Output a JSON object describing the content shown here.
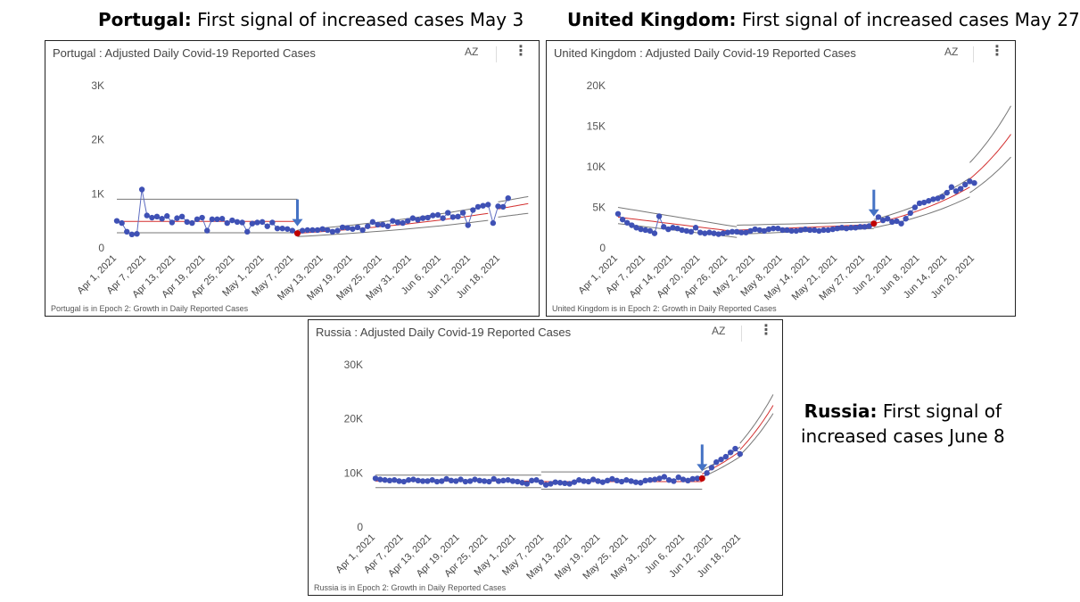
{
  "captions": [
    {
      "bold": "Portugal:",
      "rest": " First signal of increased cases May 3"
    },
    {
      "bold": "United Kingdom:",
      "rest": " First signal of increased cases May 27"
    },
    {
      "bold": "Russia:",
      "rest_line1": " First signal of",
      "line2": "increased cases June 8"
    }
  ],
  "menu": {
    "sort_icon_label": "AZ",
    "more_icon": "more-vert-icon"
  },
  "colors": {
    "points": "#3f51b5",
    "trend": "#d32f2f",
    "band": "#777777",
    "arrow": "#4472c4",
    "signal": "#c00000"
  },
  "chart_data": [
    {
      "id": "portugal",
      "type": "line",
      "title": "Portugal : Adjusted Daily Covid-19 Reported Cases",
      "footer": "Portugal is in Epoch 2: Growth in Daily Reported Cases",
      "x_tick_labels": [
        "Apr 1, 2021",
        "Apr 7, 2021",
        "Apr 13, 2021",
        "Apr 19, 2021",
        "Apr 25, 2021",
        "May 1, 2021",
        "May 7, 2021",
        "May 13, 2021",
        "May 19, 2021",
        "May 25, 2021",
        "May 31, 2021",
        "Jun 6, 2021",
        "Jun 12, 2021",
        "Jun 18, 2021"
      ],
      "y_ticks": [
        {
          "v": 0,
          "label": "0"
        },
        {
          "v": 1000,
          "label": "1K"
        },
        {
          "v": 2000,
          "label": "2K"
        },
        {
          "v": 3000,
          "label": "3K"
        }
      ],
      "ylim": [
        0,
        3000
      ],
      "xlim": [
        0,
        80
      ],
      "signal_day": 36,
      "arrow_day": 36,
      "values": [
        500,
        460,
        300,
        250,
        260,
        1080,
        600,
        560,
        580,
        540,
        590,
        470,
        550,
        580,
        480,
        460,
        530,
        560,
        320,
        530,
        530,
        540,
        460,
        510,
        480,
        470,
        300,
        450,
        470,
        480,
        400,
        470,
        360,
        360,
        350,
        320,
        270,
        320,
        330,
        330,
        330,
        350,
        330,
        300,
        320,
        380,
        370,
        350,
        380,
        330,
        400,
        480,
        430,
        430,
        400,
        500,
        470,
        460,
        500,
        550,
        520,
        550,
        560,
        600,
        610,
        550,
        650,
        570,
        580,
        650,
        420,
        700,
        760,
        780,
        800,
        460,
        770,
        760,
        920
      ],
      "bands": [
        {
          "from": 0,
          "to": 36,
          "upper": [
            900,
            900
          ],
          "trend": [
            490,
            490
          ],
          "lower": [
            280,
            280
          ]
        },
        {
          "from": 36,
          "to": 74,
          "upper": [
            330,
            780
          ],
          "trend": [
            270,
            640
          ],
          "lower": [
            210,
            510
          ]
        }
      ],
      "forecast": [
        {
          "from": 76,
          "to": 82,
          "upper": [
            850,
            950
          ],
          "trend": [
            720,
            820
          ],
          "lower": [
            570,
            640
          ]
        }
      ]
    },
    {
      "id": "uk",
      "type": "line",
      "title": "United Kingdom : Adjusted Daily Covid-19 Reported Cases",
      "footer": "United Kingdom is in Epoch 2: Growth in Daily Reported Cases",
      "x_tick_labels": [
        "Apr 1, 2021",
        "Apr 7, 2021",
        "Apr 14, 2021",
        "Apr 20, 2021",
        "Apr 26, 2021",
        "May 2, 2021",
        "May 8, 2021",
        "May 14, 2021",
        "May 21, 2021",
        "May 27, 2021",
        "Jun 2, 2021",
        "Jun 8, 2021",
        "Jun 14, 2021",
        "Jun 20, 2021"
      ],
      "y_ticks": [
        {
          "v": 0,
          "label": "0"
        },
        {
          "v": 5000,
          "label": "5K"
        },
        {
          "v": 10000,
          "label": "10K"
        },
        {
          "v": 15000,
          "label": "15K"
        },
        {
          "v": 20000,
          "label": "20K"
        }
      ],
      "ylim": [
        0,
        20000
      ],
      "xlim": [
        0,
        82
      ],
      "signal_day": 56,
      "arrow_day": 56,
      "values": [
        4200,
        3500,
        3100,
        2800,
        2500,
        2300,
        2200,
        2100,
        1800,
        3900,
        2600,
        2300,
        2500,
        2400,
        2200,
        2100,
        2000,
        2500,
        1900,
        1800,
        1900,
        1800,
        1700,
        1800,
        1900,
        2000,
        2000,
        1900,
        1900,
        2100,
        2300,
        2200,
        2100,
        2300,
        2400,
        2400,
        2200,
        2200,
        2100,
        2100,
        2200,
        2300,
        2200,
        2200,
        2100,
        2200,
        2200,
        2300,
        2400,
        2500,
        2400,
        2500,
        2500,
        2600,
        2600,
        2700,
        3000,
        3800,
        3400,
        3600,
        3200,
        3300,
        3000,
        3600,
        4300,
        5000,
        5500,
        5600,
        5800,
        6000,
        6100,
        6300,
        6800,
        7500,
        7000,
        7300,
        7800,
        8200,
        8000
      ],
      "bands": [
        {
          "from": 0,
          "to": 26,
          "upper": [
            5000,
            2600
          ],
          "trend": [
            3800,
            2000
          ],
          "lower": [
            3000,
            1300
          ]
        },
        {
          "from": 26,
          "to": 56,
          "upper": [
            2800,
            3200
          ],
          "trend": [
            2200,
            2900
          ],
          "lower": [
            1700,
            2400
          ]
        },
        {
          "from": 56,
          "to": 77,
          "upper": [
            3500,
            8600
          ],
          "trend": [
            3000,
            7500
          ],
          "lower": [
            2500,
            6300
          ]
        }
      ],
      "forecast": [
        {
          "from": 77,
          "to": 86,
          "upper": [
            10500,
            17500
          ],
          "trend": [
            8500,
            14000
          ],
          "lower": [
            6800,
            11200
          ]
        }
      ]
    },
    {
      "id": "russia",
      "type": "line",
      "title": "Russia : Adjusted Daily Covid-19 Reported Cases",
      "footer": "Russia is in Epoch 2: Growth in Daily Reported Cases",
      "x_tick_labels": [
        "Apr 1, 2021",
        "Apr 7, 2021",
        "Apr 13, 2021",
        "Apr 19, 2021",
        "Apr 25, 2021",
        "May 1, 2021",
        "May 7, 2021",
        "May 13, 2021",
        "May 19, 2021",
        "May 25, 2021",
        "May 31, 2021",
        "Jun 6, 2021",
        "Jun 12, 2021",
        "Jun 18, 2021"
      ],
      "y_ticks": [
        {
          "v": 0,
          "label": "0"
        },
        {
          "v": 10000,
          "label": "10K"
        },
        {
          "v": 20000,
          "label": "20K"
        },
        {
          "v": 30000,
          "label": "30K"
        }
      ],
      "ylim": [
        0,
        30000
      ],
      "xlim": [
        0,
        81
      ],
      "signal_day": 69,
      "arrow_day": 69,
      "values": [
        9000,
        8800,
        8700,
        8600,
        8700,
        8500,
        8400,
        8700,
        8800,
        8600,
        8500,
        8500,
        8700,
        8400,
        8500,
        8900,
        8600,
        8500,
        8800,
        8400,
        8500,
        8800,
        8600,
        8500,
        8400,
        8900,
        8500,
        8600,
        8700,
        8500,
        8400,
        8200,
        8000,
        8600,
        8700,
        8300,
        7800,
        8000,
        8300,
        8200,
        8100,
        8000,
        8300,
        8700,
        8500,
        8400,
        8800,
        8500,
        8300,
        8600,
        8900,
        8600,
        8400,
        8700,
        8500,
        8300,
        8200,
        8600,
        8700,
        8800,
        9000,
        9300,
        8700,
        8500,
        9200,
        8800,
        8600,
        8900,
        9000,
        9000,
        10000,
        11000,
        12000,
        12500,
        13000,
        13800,
        14500,
        13500
      ],
      "bands": [
        {
          "from": 0,
          "to": 35,
          "upper": [
            9600,
            9600
          ],
          "trend": [
            8500,
            8500
          ],
          "lower": [
            7300,
            7300
          ]
        },
        {
          "from": 35,
          "to": 69,
          "upper": [
            10200,
            10200
          ],
          "trend": [
            8400,
            8400
          ],
          "lower": [
            7000,
            7000
          ]
        },
        {
          "from": 69,
          "to": 77,
          "upper": [
            10500,
            14800
          ],
          "trend": [
            9800,
            14000
          ],
          "lower": [
            9200,
            13000
          ]
        }
      ],
      "forecast": [
        {
          "from": 77,
          "to": 84,
          "upper": [
            15500,
            24500
          ],
          "trend": [
            14300,
            22500
          ],
          "lower": [
            13300,
            21000
          ]
        }
      ]
    }
  ]
}
